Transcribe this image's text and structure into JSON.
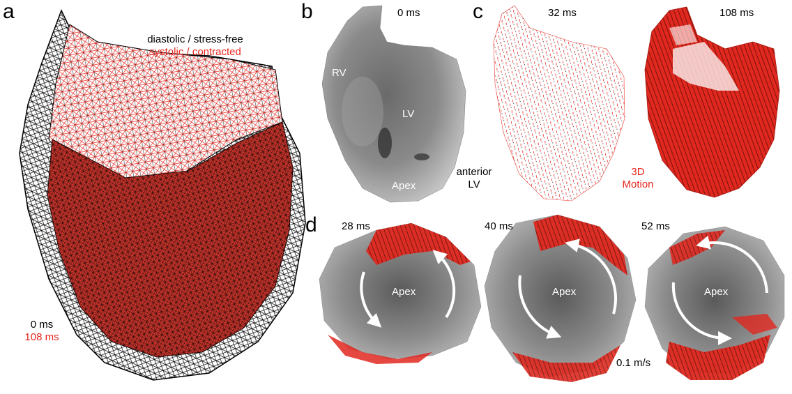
{
  "panels": {
    "a": {
      "label": "a",
      "legend_black": "diastolic / stress-free",
      "legend_red": "systolic / contracted",
      "time_black": "0 ms",
      "time_red": "108 ms"
    },
    "b": {
      "label": "b",
      "time": "0 ms",
      "rv": "RV",
      "lv": "LV",
      "apex": "Apex",
      "view_line1": "anterior",
      "view_line2": "LV"
    },
    "c": {
      "label": "c",
      "time1": "32 ms",
      "time2": "108 ms",
      "motion_line1": "3D",
      "motion_line2": "Motion"
    },
    "d": {
      "label": "d",
      "time1": "28 ms",
      "time2": "40 ms",
      "time3": "52 ms",
      "apex1": "Apex",
      "apex2": "Apex",
      "apex3": "Apex",
      "scale": "0.1 m/s"
    }
  },
  "colors": {
    "systolic": "#e8261e",
    "diastolic": "#000000",
    "surface": "#8a8a8a"
  }
}
